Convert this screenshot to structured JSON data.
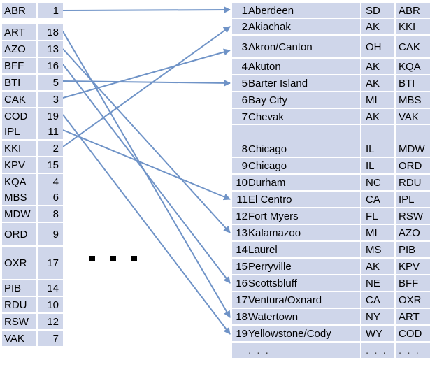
{
  "left_rows": [
    {
      "code": "ABR",
      "num": "1"
    },
    {
      "code": "ART",
      "num": "18"
    },
    {
      "code": "AZO",
      "num": "13"
    },
    {
      "code": "BFF",
      "num": "16"
    },
    {
      "code": "BTI",
      "num": "5"
    },
    {
      "code": "CAK",
      "num": "3"
    },
    {
      "code": "COD",
      "num": "19"
    },
    {
      "code": "IPL",
      "num": "11"
    },
    {
      "code": "KKI",
      "num": "2"
    },
    {
      "code": "KPV",
      "num": "15"
    },
    {
      "code": "KQA",
      "num": "4"
    },
    {
      "code": "MBS",
      "num": "6"
    },
    {
      "code": "MDW",
      "num": "8"
    },
    {
      "code": "ORD",
      "num": "9"
    },
    {
      "code": "OXR",
      "num": "17"
    },
    {
      "code": "PIB",
      "num": "14"
    },
    {
      "code": "RDU",
      "num": "10"
    },
    {
      "code": "RSW",
      "num": "12"
    },
    {
      "code": "VAK",
      "num": "7"
    }
  ],
  "right_rows": [
    {
      "num": "1",
      "city": "Aberdeen",
      "state": "SD",
      "code": "ABR"
    },
    {
      "num": "2",
      "city": "Akiachak",
      "state": "AK",
      "code": "KKI"
    },
    {
      "num": "3",
      "city": "Akron/Canton",
      "state": "OH",
      "code": "CAK"
    },
    {
      "num": "4",
      "city": "Akuton",
      "state": "AK",
      "code": "KQA"
    },
    {
      "num": "5",
      "city": "Barter Island",
      "state": "AK",
      "code": "BTI"
    },
    {
      "num": "6",
      "city": "Bay City",
      "state": "MI",
      "code": "MBS"
    },
    {
      "num": "7",
      "city": "Chevak",
      "state": "AK",
      "code": "VAK"
    },
    {
      "num": "8",
      "city": "Chicago",
      "state": "IL",
      "code": "MDW"
    },
    {
      "num": "9",
      "city": "Chicago",
      "state": "IL",
      "code": "ORD"
    },
    {
      "num": "10",
      "city": "Durham",
      "state": "NC",
      "code": "RDU"
    },
    {
      "num": "11",
      "city": "El Centro",
      "state": "CA",
      "code": "IPL"
    },
    {
      "num": "12",
      "city": "Fort Myers",
      "state": "FL",
      "code": "RSW"
    },
    {
      "num": "13",
      "city": "Kalamazoo",
      "state": "MI",
      "code": "AZO"
    },
    {
      "num": "14",
      "city": "Laurel",
      "state": "MS",
      "code": "PIB"
    },
    {
      "num": "15",
      "city": "Perryville",
      "state": "AK",
      "code": "KPV"
    },
    {
      "num": "16",
      "city": "Scottsbluff",
      "state": "NE",
      "code": "BFF"
    },
    {
      "num": "17",
      "city": "Ventura/Oxnard",
      "state": "CA",
      "code": "OXR"
    },
    {
      "num": "18",
      "city": "Watertown",
      "state": "NY",
      "code": "ART"
    },
    {
      "num": "19",
      "city": "Yellowstone/Cody",
      "state": "WY",
      "code": "COD"
    }
  ],
  "ellipsis_row": {
    "num": "",
    "city": ". . .",
    "state": ". . .",
    "code": ". . ."
  },
  "mappings": [
    {
      "from": "ABR",
      "to": "1"
    },
    {
      "from": "ART",
      "to": "18"
    },
    {
      "from": "AZO",
      "to": "13"
    },
    {
      "from": "BFF",
      "to": "16"
    },
    {
      "from": "BTI",
      "to": "5"
    },
    {
      "from": "CAK",
      "to": "3"
    },
    {
      "from": "COD",
      "to": "19"
    },
    {
      "from": "KKI",
      "to": "2"
    },
    {
      "from": "IPL",
      "to": "11"
    }
  ],
  "arrow_color": "#6f93c7",
  "cell_color": "#cfd6ea"
}
